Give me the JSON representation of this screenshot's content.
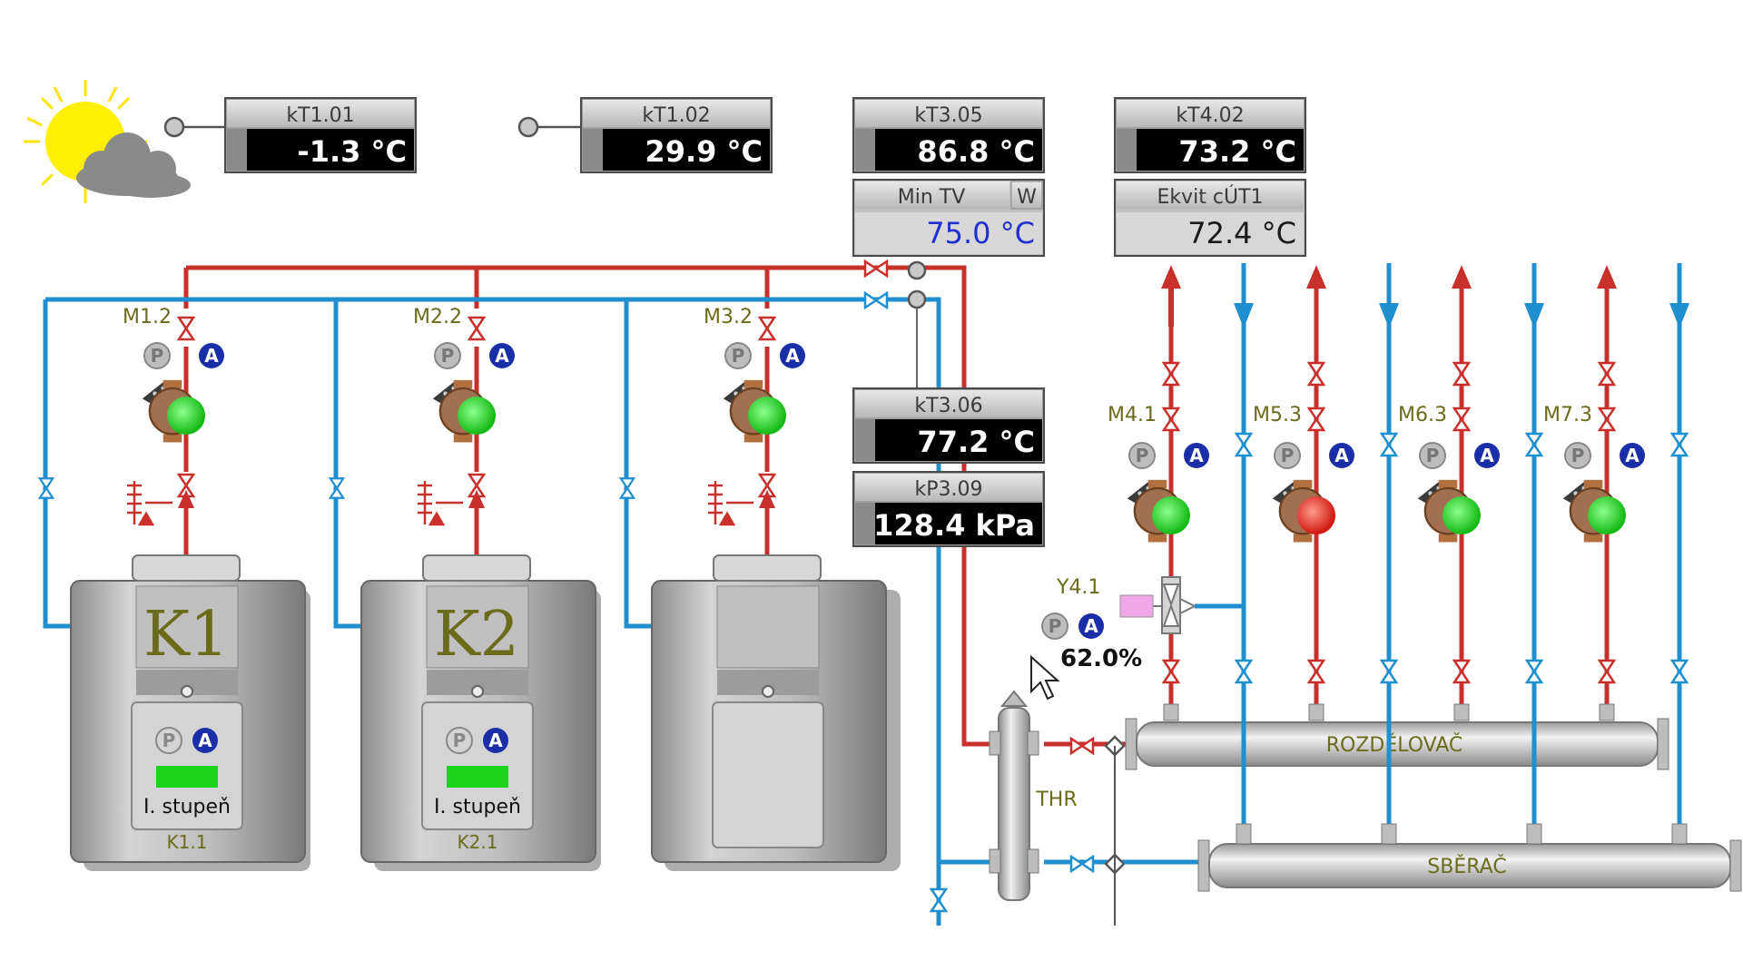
{
  "colors": {
    "supply": "#c9302c",
    "return": "#1f8fd0",
    "pump_on": "#1cd31c",
    "pump_off": "#e8201c",
    "auto_badge": "#1a2ea8",
    "manual_badge": "#9a9a9a",
    "display_bg": "#000000",
    "tag_text": "#6b6b1c",
    "setpoint_text": "#1f2fd0",
    "mixer_actuator": "#f0a8e8"
  },
  "weather": {
    "icon": "sun-cloud-icon"
  },
  "sensors": {
    "kT1_01": {
      "label": "kT1.01",
      "value": "-1.3 °C"
    },
    "kT1_02": {
      "label": "kT1.02",
      "value": "29.9 °C"
    },
    "kT3_05": {
      "label": "kT3.05",
      "value": "86.8 °C"
    },
    "kT4_02": {
      "label": "kT4.02",
      "value": "73.2 °C"
    },
    "kT3_06": {
      "label": "kT3.06",
      "value": "77.2 °C"
    },
    "kP3_09": {
      "label": "kP3.09",
      "value": "128.4 kPa"
    }
  },
  "setpoints": {
    "min_tv": {
      "label": "Min TV",
      "flag": "W",
      "value": "75.0 °C"
    },
    "ekvit": {
      "label": "Ekvit cÚT1",
      "value": "72.4 °C"
    }
  },
  "badges": {
    "manual": "P",
    "auto": "A"
  },
  "boilers": [
    {
      "name": "K1",
      "pump": "M1.2",
      "stage_label": "I. stupeň",
      "stage_tag": "K1.1"
    },
    {
      "name": "K2",
      "pump": "M2.2",
      "stage_label": "I. stupeň",
      "stage_tag": "K2.1"
    },
    {
      "name": "",
      "pump": "M3.2",
      "stage_label": "",
      "stage_tag": ""
    }
  ],
  "circuits": [
    {
      "pump": "M4.1",
      "state": "on"
    },
    {
      "pump": "M5.3",
      "state": "off"
    },
    {
      "pump": "M6.3",
      "state": "on"
    },
    {
      "pump": "M7.3",
      "state": "on"
    }
  ],
  "mixer": {
    "tag": "Y4.1",
    "position": "62.0%",
    "position_fraction": 0.62
  },
  "hydraulic_separator": {
    "label": "THR"
  },
  "headers": {
    "distributor": "ROZDĚLOVAČ",
    "collector": "SBĚRAČ"
  }
}
